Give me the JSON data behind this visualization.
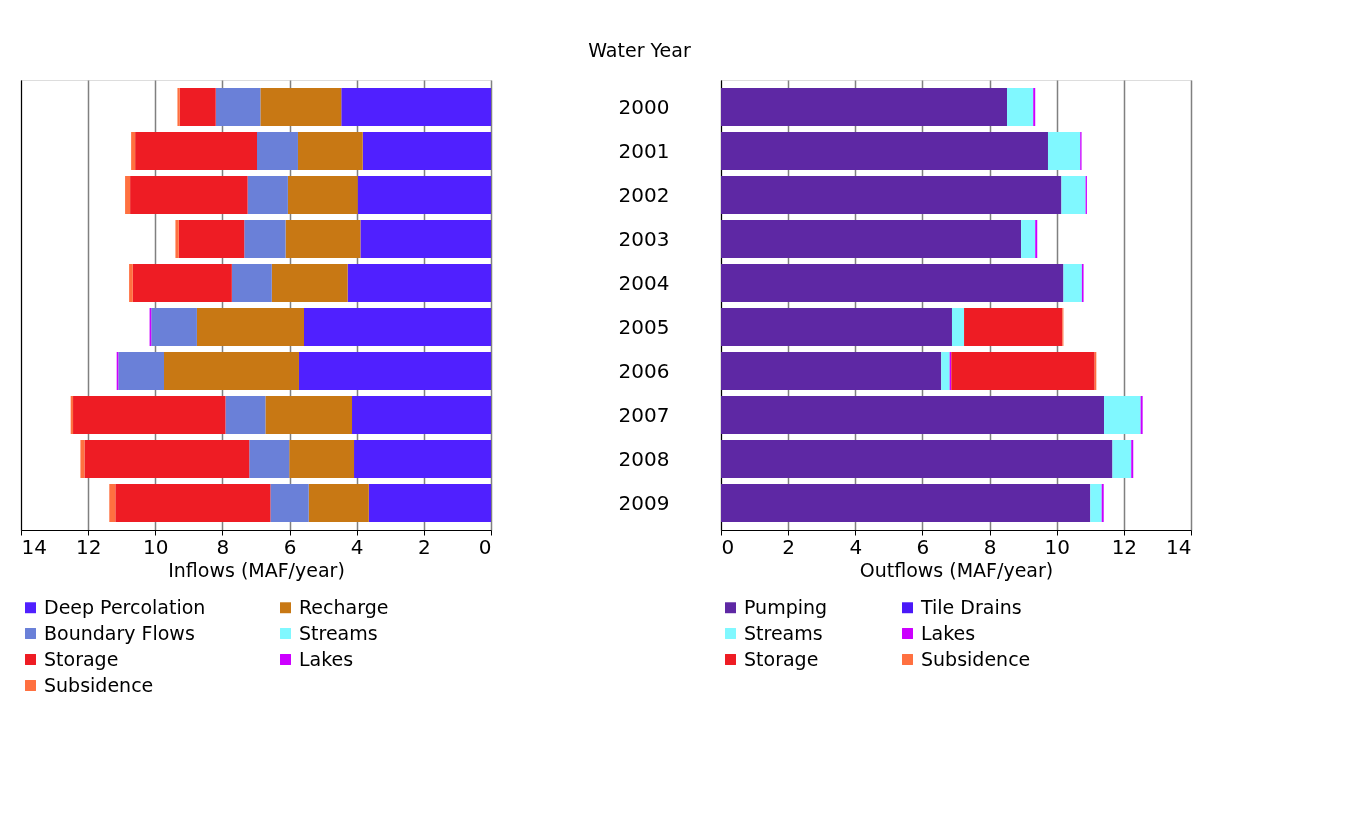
{
  "chart_data": [
    {
      "type": "bar",
      "orientation": "horizontal",
      "stacked": true,
      "xlabel": "Inflows (MAF/year)",
      "categories": [
        "2000",
        "2001",
        "2002",
        "2003",
        "2004",
        "2005",
        "2006",
        "2007",
        "2008",
        "2009"
      ],
      "xlim": [
        14,
        0
      ],
      "xticks": [
        14,
        12,
        10,
        8,
        6,
        4,
        2,
        0
      ],
      "grid": "x",
      "legend": "bottom",
      "tick_labels": "x",
      "series": [
        {
          "name": "Deep Percolation",
          "color": "#5020ff",
          "values": [
            4.46,
            3.82,
            3.97,
            3.89,
            4.27,
            5.57,
            5.72,
            4.14,
            4.08,
            3.64
          ]
        },
        {
          "name": "Recharge",
          "color": "#c87814",
          "values": [
            2.41,
            1.93,
            2.08,
            2.23,
            2.26,
            3.19,
            4.02,
            2.58,
            1.93,
            1.79
          ]
        },
        {
          "name": "Boundary Flows",
          "color": "#6a80d8",
          "values": [
            1.33,
            1.22,
            1.2,
            1.23,
            1.19,
            1.36,
            1.36,
            1.19,
            1.19,
            1.14
          ]
        },
        {
          "name": "Streams",
          "color": "#80f8ff",
          "values": [
            0,
            0,
            0,
            0,
            0,
            0,
            0,
            0,
            0,
            0
          ]
        },
        {
          "name": "Storage",
          "color": "#ee1c24",
          "values": [
            1.07,
            3.63,
            3.5,
            1.95,
            2.95,
            0,
            0,
            4.54,
            4.91,
            4.62
          ]
        },
        {
          "name": "Lakes",
          "color": "#cc00ff",
          "values": [
            0,
            0,
            0,
            0,
            0,
            0.05,
            0.05,
            0,
            0,
            0
          ]
        },
        {
          "name": "Subsidence",
          "color": "#ff7040",
          "values": [
            0.07,
            0.12,
            0.15,
            0.1,
            0.11,
            0,
            0,
            0.07,
            0.12,
            0.18
          ]
        }
      ]
    },
    {
      "type": "bar",
      "orientation": "horizontal",
      "stacked": true,
      "xlabel": "Outflows (MAF/year)",
      "ylabel": "Water Year",
      "categories": [
        "2000",
        "2001",
        "2002",
        "2003",
        "2004",
        "2005",
        "2006",
        "2007",
        "2008",
        "2009"
      ],
      "xlim": [
        0,
        14
      ],
      "xticks": [
        0,
        2,
        4,
        6,
        8,
        10,
        12,
        14
      ],
      "grid": "x",
      "legend": "bottom",
      "series": [
        {
          "name": "Pumping",
          "color": "#5e28a4",
          "values": [
            8.52,
            9.74,
            10.14,
            8.94,
            10.2,
            6.88,
            6.56,
            11.41,
            11.66,
            11.0
          ]
        },
        {
          "name": "Tile Drains",
          "color": "#4a18f8",
          "values": [
            0,
            0,
            0,
            0,
            0,
            0,
            0,
            0,
            0,
            0
          ]
        },
        {
          "name": "Streams",
          "color": "#80f8ff",
          "values": [
            0.78,
            0.96,
            0.72,
            0.42,
            0.55,
            0.36,
            0.25,
            1.09,
            0.56,
            0.34
          ]
        },
        {
          "name": "Lakes",
          "color": "#cc00ff",
          "values": [
            0.06,
            0.04,
            0.04,
            0.06,
            0.05,
            0,
            0.05,
            0.06,
            0.06,
            0.06
          ]
        },
        {
          "name": "Storage",
          "color": "#ee1c24",
          "values": [
            0,
            0,
            0,
            0,
            0,
            2.93,
            4.27,
            0,
            0,
            0
          ]
        },
        {
          "name": "Subsidence",
          "color": "#ff7040",
          "values": [
            0,
            0,
            0,
            0,
            0,
            0.03,
            0.05,
            0,
            0,
            0
          ]
        }
      ]
    }
  ]
}
